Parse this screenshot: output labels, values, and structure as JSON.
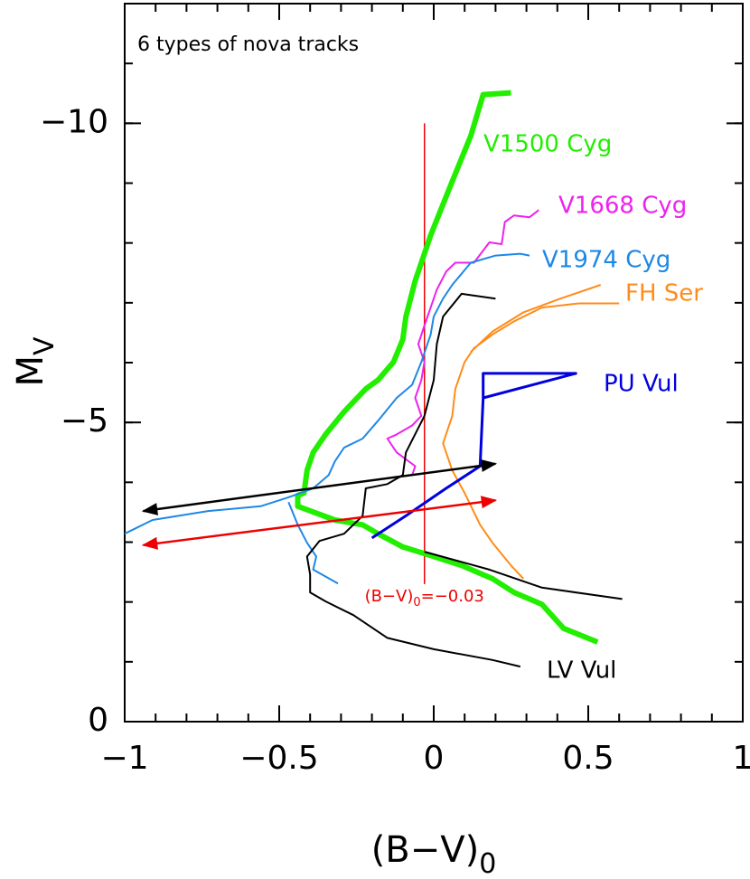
{
  "chart_data": {
    "type": "line",
    "title": "6 types of nova tracks",
    "xlabel": {
      "text": "(B−V)",
      "sub": "0"
    },
    "ylabel": {
      "text": "M",
      "sub": "V"
    },
    "xlim": [
      -1,
      1
    ],
    "ylim": [
      0,
      -12
    ],
    "xticks": [
      {
        "value": -1,
        "label": "−1"
      },
      {
        "value": -0.5,
        "label": "−0.5"
      },
      0,
      0.5,
      1
    ],
    "yticks": [
      {
        "value": -10,
        "label": "−10"
      },
      {
        "value": -5,
        "label": "−5"
      },
      0
    ],
    "x_minor_step": 0.1,
    "y_minor_step": 1,
    "series": [
      {
        "name": "V1500 Cyg",
        "color": "#22ee00",
        "width": 6,
        "x": [
          0.25,
          0.16,
          0.12,
          0.06,
          -0.01,
          -0.04,
          -0.06,
          -0.09,
          -0.1,
          -0.13,
          -0.18,
          -0.22,
          -0.29,
          -0.35,
          -0.39,
          -0.41,
          -0.42,
          -0.44,
          -0.44,
          -0.32,
          -0.23,
          -0.18,
          -0.1,
          -0.03,
          0.09,
          0.19,
          0.26,
          0.35,
          0.42,
          0.53
        ],
        "values": [
          -10.51,
          -10.48,
          -9.79,
          -9.03,
          -8.13,
          -7.67,
          -7.37,
          -6.77,
          -6.39,
          -6.01,
          -5.71,
          -5.56,
          -5.18,
          -4.8,
          -4.5,
          -4.2,
          -3.82,
          -3.78,
          -3.6,
          -3.37,
          -3.29,
          -3.14,
          -2.92,
          -2.81,
          -2.61,
          -2.39,
          -2.16,
          -1.96,
          -1.56,
          -1.33
        ]
      },
      {
        "name": "V1668 Cyg",
        "color": "#ee22ee",
        "width": 2,
        "x": [
          0.34,
          0.31,
          0.26,
          0.23,
          0.22,
          0.18,
          0.13,
          0.07,
          0.04,
          0.01,
          -0.01,
          -0.03,
          -0.05,
          -0.03,
          -0.04,
          -0.06,
          -0.04,
          -0.07,
          -0.12,
          -0.15,
          -0.12,
          -0.06,
          -0.07
        ],
        "values": [
          -8.55,
          -8.43,
          -8.46,
          -8.35,
          -7.98,
          -8.01,
          -7.67,
          -7.67,
          -7.52,
          -7.22,
          -6.92,
          -6.62,
          -6.31,
          -6.01,
          -5.71,
          -5.41,
          -5.11,
          -4.95,
          -4.8,
          -4.73,
          -4.5,
          -4.27,
          -4.12
        ]
      },
      {
        "name": "V1974 Cyg",
        "color": "#1e88e5",
        "width": 2,
        "x": [
          0.31,
          0.28,
          0.2,
          0.12,
          0.06,
          0.03,
          0.0,
          -0.01,
          -0.04,
          -0.07,
          -0.12,
          -0.18,
          -0.23,
          -0.29,
          -0.32,
          -0.34,
          -0.39,
          -0.47,
          -0.56,
          -0.73,
          -0.91,
          -1.0,
          null,
          -0.47,
          -0.44,
          -0.41,
          -0.38,
          -0.39,
          -0.31
        ],
        "values": [
          -7.79,
          -7.82,
          -7.79,
          -7.67,
          -7.3,
          -7.07,
          -6.77,
          -6.47,
          -6.01,
          -5.63,
          -5.41,
          -5.03,
          -4.73,
          -4.58,
          -4.35,
          -4.12,
          -3.9,
          -3.75,
          -3.6,
          -3.52,
          -3.37,
          -3.14,
          null,
          -3.67,
          -3.29,
          -2.99,
          -2.76,
          -2.54,
          -2.31
        ]
      },
      {
        "name": "FH Ser",
        "color": "#ff8c1a",
        "width": 2,
        "x": [
          0.6,
          0.47,
          0.35,
          0.26,
          0.19,
          0.13,
          0.1,
          0.07,
          0.06,
          0.03,
          0.06,
          0.1,
          0.15,
          0.19,
          0.25,
          0.29,
          null,
          0.54,
          0.41,
          0.29,
          0.19,
          0.12
        ],
        "values": [
          -6.99,
          -6.99,
          -6.92,
          -6.69,
          -6.47,
          -6.24,
          -6.01,
          -5.56,
          -5.11,
          -4.65,
          -4.2,
          -3.82,
          -3.29,
          -2.99,
          -2.61,
          -2.39,
          null,
          -7.3,
          -7.07,
          -6.84,
          -6.52,
          -6.18
        ]
      },
      {
        "name": "PU Vul",
        "color": "#0000dd",
        "width": 3,
        "x": [
          -0.2,
          -0.09,
          0.04,
          0.15,
          0.16,
          0.46,
          0.16,
          0.16
        ],
        "values": [
          -3.07,
          -3.44,
          -3.9,
          -4.27,
          -5.41,
          -5.82,
          -5.82,
          -5.41
        ]
      },
      {
        "name": "LV Vul",
        "color": "#000000",
        "width": 2,
        "x": [
          0.28,
          0.19,
          0.0,
          -0.15,
          -0.26,
          -0.35,
          -0.4,
          -0.4,
          -0.41,
          -0.37,
          -0.29,
          -0.23,
          -0.22,
          -0.15,
          -0.1,
          -0.09,
          -0.03,
          0.0,
          0.01,
          0.03,
          0.09,
          0.2,
          null,
          -0.03,
          0.18,
          0.35,
          0.61
        ],
        "values": [
          -0.92,
          -1.03,
          -1.21,
          -1.4,
          -1.78,
          -2.01,
          -2.16,
          -2.46,
          -2.76,
          -3.02,
          -3.14,
          -3.44,
          -3.9,
          -3.97,
          -4.12,
          -4.5,
          -5.11,
          -5.71,
          -6.31,
          -6.77,
          -7.15,
          -7.07,
          null,
          -2.84,
          -2.54,
          -2.24,
          -2.05
        ]
      }
    ],
    "arrows": [
      {
        "color": "#000000",
        "x": [
          -0.94,
          0.2
        ],
        "y": [
          -3.52,
          -4.31
        ]
      },
      {
        "color": "#ee0000",
        "x": [
          -0.94,
          0.2
        ],
        "y": [
          -2.95,
          -3.7
        ]
      }
    ],
    "reference_line": {
      "color": "#ee0000",
      "x": -0.03,
      "y": [
        -10,
        -2.3
      ],
      "label": "(B−V)",
      "label_sub": "0",
      "label_suffix": "=−0.03"
    }
  }
}
